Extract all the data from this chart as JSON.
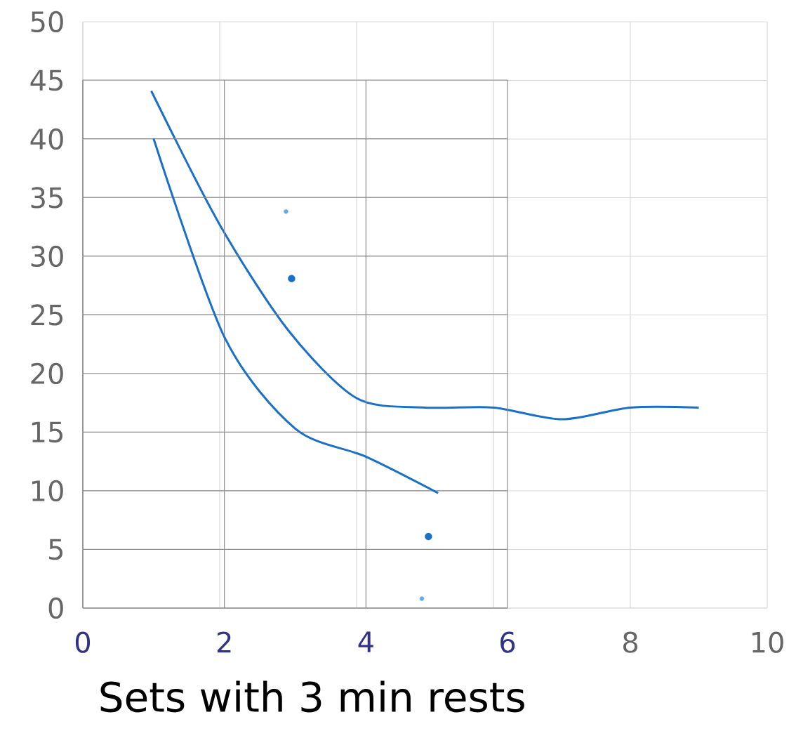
{
  "chart_data": [
    {
      "type": "line",
      "xlim": [
        0,
        10
      ],
      "ylim": [
        0,
        50
      ],
      "xticks": [
        {
          "value": 0,
          "label": null
        },
        {
          "value": 2,
          "label": null
        },
        {
          "value": 4,
          "label": null
        },
        {
          "value": 6,
          "label": null
        },
        8,
        10
      ],
      "yticks": [
        0,
        5,
        10,
        15,
        20,
        25,
        30,
        35,
        40,
        45,
        50
      ],
      "grid": true,
      "series": [
        {
          "type": "line",
          "color": "#1a6fc9",
          "x": [
            1,
            2,
            3,
            4,
            5,
            6,
            7,
            8,
            9
          ],
          "values": [
            44.1,
            32.7,
            23.7,
            17.9,
            17.1,
            17.1,
            16.1,
            17.1,
            17.1
          ]
        },
        {
          "type": "scatter",
          "color": "#1a6fc9",
          "x": [
            3.05,
            5.05
          ],
          "values": [
            28.1,
            6.1
          ]
        }
      ]
    },
    {
      "type": "line",
      "xlabel": "Sets with 3 min rests",
      "xlim": [
        0,
        6
      ],
      "ylim": [
        0,
        45
      ],
      "xticks": [
        0,
        2,
        4,
        6
      ],
      "yticks": [
        0,
        5,
        10,
        15,
        20,
        25,
        30,
        35,
        40,
        45
      ],
      "grid": true,
      "tick_labels": "x",
      "series": [
        {
          "type": "line",
          "color": "#1a6fc9",
          "x": [
            1,
            2,
            3,
            4,
            5.02
          ],
          "values": [
            40,
            23.1,
            15.3,
            12.9,
            9.8
          ]
        },
        {
          "type": "scatter",
          "color": "#5ea9f0",
          "x": [
            2.87,
            4.79
          ],
          "values": [
            33.8,
            0.8
          ]
        }
      ]
    }
  ]
}
